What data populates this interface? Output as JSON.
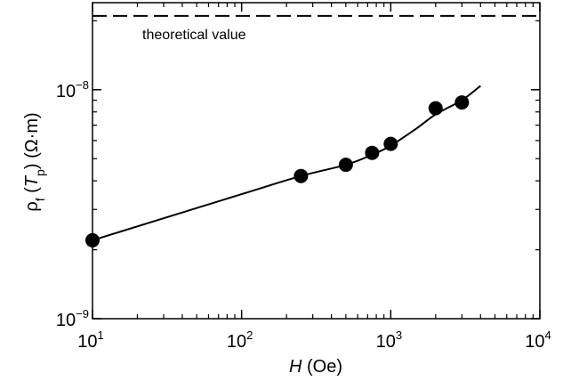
{
  "chart_data": {
    "type": "scatter",
    "x_scale": "log",
    "y_scale": "log",
    "xlim": [
      10,
      10000
    ],
    "ylim": [
      1e-09,
      2.4e-08
    ],
    "grid": false,
    "x_ticks": [
      {
        "value": 10,
        "base": "10",
        "exp": "1"
      },
      {
        "value": 100,
        "base": "10",
        "exp": "2"
      },
      {
        "value": 1000,
        "base": "10",
        "exp": "3"
      },
      {
        "value": 10000,
        "base": "10",
        "exp": "4"
      }
    ],
    "y_ticks": [
      {
        "value": 1e-09,
        "base": "10",
        "exp": "−9"
      },
      {
        "value": 1e-08,
        "base": "10",
        "exp": "−8"
      }
    ],
    "xlabel": {
      "italic": "H",
      "rest": " (Oe)"
    },
    "ylabel": {
      "rho": "ρ",
      "rho_sub": "f",
      "open": " (",
      "italic": "T",
      "italic_sub": "p",
      "close": ")  (Ω·m)"
    },
    "points": {
      "x": [
        10,
        250,
        500,
        750,
        1000,
        2000,
        3000
      ],
      "y": [
        2.2e-09,
        4.2e-09,
        4.7e-09,
        5.3e-09,
        5.8e-09,
        8.3e-09,
        8.8e-09
      ]
    },
    "fit_curve": {
      "x": [
        10,
        100,
        250,
        500,
        750,
        1000,
        1500,
        2000,
        3000,
        4000
      ],
      "y": [
        2.2e-09,
        3.5e-09,
        4.2e-09,
        4.7e-09,
        5.2e-09,
        5.7e-09,
        6.8e-09,
        7.8e-09,
        9e-09,
        1.04e-08
      ]
    },
    "reference_line": {
      "y": 2.1e-08,
      "label": "theoretical value",
      "style": "dashed"
    }
  }
}
